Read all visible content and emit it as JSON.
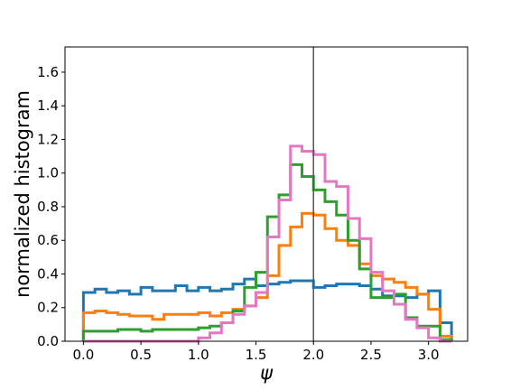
{
  "chart_data": {
    "type": "histogram",
    "title": "",
    "xlabel": "ψ",
    "ylabel": "normalized histogram",
    "xlim": [
      -0.16,
      3.34
    ],
    "ylim": [
      0.0,
      1.75
    ],
    "xticks": [
      0.0,
      0.5,
      1.0,
      1.5,
      2.0,
      2.5,
      3.0
    ],
    "xtick_labels": [
      "0.0",
      "0.5",
      "1.0",
      "1.5",
      "2.0",
      "2.5",
      "3.0"
    ],
    "yticks": [
      0.0,
      0.2,
      0.4,
      0.6,
      0.8,
      1.0,
      1.2,
      1.4,
      1.6
    ],
    "ytick_labels": [
      "0.0",
      "0.2",
      "0.4",
      "0.6",
      "0.8",
      "1.0",
      "1.2",
      "1.4",
      "1.6"
    ],
    "grid": false,
    "legend": "none",
    "bin_edges": [
      0.0,
      0.1,
      0.2,
      0.3,
      0.4,
      0.5,
      0.6,
      0.7,
      0.8,
      0.9,
      1.0,
      1.1,
      1.2,
      1.3,
      1.4,
      1.5,
      1.6,
      1.7,
      1.8,
      1.9,
      2.0,
      2.1,
      2.2,
      2.3,
      2.4,
      2.5,
      2.6,
      2.7,
      2.8,
      2.9,
      3.0,
      3.1,
      3.2
    ],
    "vline": {
      "x": 2.0,
      "color": "#555555"
    },
    "series": [
      {
        "color": "#1f77b4",
        "values": [
          0.29,
          0.31,
          0.29,
          0.3,
          0.28,
          0.32,
          0.3,
          0.3,
          0.33,
          0.3,
          0.32,
          0.3,
          0.31,
          0.34,
          0.37,
          0.33,
          0.34,
          0.35,
          0.36,
          0.36,
          0.32,
          0.33,
          0.34,
          0.34,
          0.33,
          0.31,
          0.27,
          0.27,
          0.26,
          0.28,
          0.3,
          0.11
        ]
      },
      {
        "color": "#ff7f0e",
        "values": [
          0.17,
          0.18,
          0.17,
          0.16,
          0.15,
          0.15,
          0.13,
          0.16,
          0.16,
          0.16,
          0.17,
          0.15,
          0.17,
          0.19,
          0.21,
          0.26,
          0.39,
          0.57,
          0.68,
          0.76,
          0.75,
          0.67,
          0.6,
          0.57,
          0.46,
          0.39,
          0.37,
          0.35,
          0.32,
          0.28,
          0.19,
          0.03
        ]
      },
      {
        "color": "#2ca02c",
        "values": [
          0.06,
          0.06,
          0.06,
          0.07,
          0.07,
          0.06,
          0.07,
          0.07,
          0.07,
          0.07,
          0.08,
          0.09,
          0.11,
          0.18,
          0.32,
          0.41,
          0.74,
          0.87,
          1.05,
          0.98,
          0.9,
          0.83,
          0.75,
          0.6,
          0.43,
          0.26,
          0.26,
          0.28,
          0.14,
          0.09,
          0.09,
          0.01
        ]
      },
      {
        "color": "#e377c2",
        "values": [
          0.0,
          0.0,
          0.0,
          0.0,
          0.0,
          0.0,
          0.0,
          0.0,
          0.0,
          0.0,
          0.02,
          0.05,
          0.11,
          0.16,
          0.21,
          0.29,
          0.62,
          0.84,
          1.16,
          1.13,
          1.11,
          0.95,
          0.92,
          0.73,
          0.61,
          0.41,
          0.3,
          0.22,
          0.13,
          0.08,
          0.02,
          0.0
        ]
      }
    ]
  }
}
